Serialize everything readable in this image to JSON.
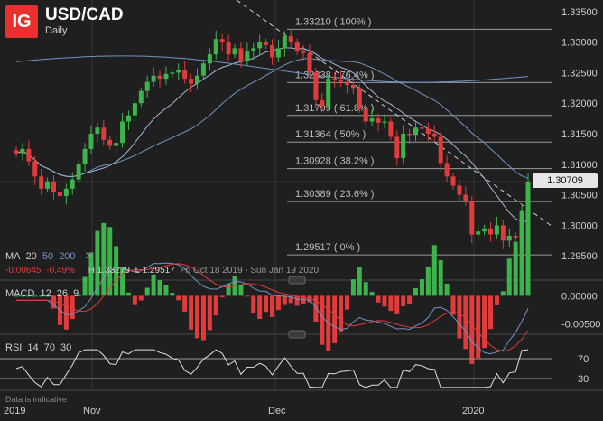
{
  "header": {
    "logo": "IG",
    "pair": "USD/CAD",
    "timeframe": "Daily"
  },
  "price_axis": {
    "ticks": [
      "1.33500",
      "1.33000",
      "1.32500",
      "1.32000",
      "1.31500",
      "1.31000",
      "1.30500",
      "1.30000",
      "1.29500"
    ],
    "current": "1.30709"
  },
  "fib_levels": [
    {
      "label": "1.33210 ( 100% )",
      "price": 1.3321
    },
    {
      "label": "1.32338 ( 76.4% )",
      "price": 1.32338
    },
    {
      "label": "1.31799 ( 61.8% )",
      "price": 1.31799
    },
    {
      "label": "1.31364 ( 50% )",
      "price": 1.31364
    },
    {
      "label": "1.30928 ( 38.2% )",
      "price": 1.30928
    },
    {
      "label": "1.30389 ( 23.6% )",
      "price": 1.30389
    },
    {
      "label": "1.29517 ( 0% )",
      "price": 1.29517
    }
  ],
  "ma_bar": {
    "label": "MA",
    "p1": "20",
    "p2": "50",
    "p3": "200",
    "close": "✕",
    "change": "-0.00645",
    "change_pct": "-0.49%",
    "high": "H 1.33279",
    "low": "L 1.29517",
    "range": "Fri Oct 18 2019 - Sun Jan 19 2020"
  },
  "macd": {
    "label": "MACD",
    "p1": "12",
    "p2": "26",
    "p3": "9",
    "ticks": [
      "0.00000",
      "-0.00500"
    ]
  },
  "rsi": {
    "label": "RSI",
    "p1": "14",
    "p2": "70",
    "p3": "30",
    "ticks": [
      "70",
      "30"
    ]
  },
  "x_axis": [
    "2019",
    "Nov",
    "Dec",
    "2020"
  ],
  "footer_note": "Data is indicative",
  "colors": {
    "up": "#3cb44b",
    "down": "#e23b3b",
    "ma20": "#9fb8d8",
    "ma50": "#6f95c4",
    "ma200": "#6f95c4",
    "signal": "#e23b3b"
  },
  "chart_data": {
    "type": "candlestick",
    "symbol": "USD/CAD",
    "x_ticks": [
      "2019",
      "Nov",
      "Dec",
      "2020"
    ],
    "ylim": [
      1.294,
      1.336
    ],
    "series": [
      {
        "name": "close",
        "values": [
          1.3118,
          1.3125,
          1.3105,
          1.308,
          1.306,
          1.3072,
          1.3055,
          1.3048,
          1.306,
          1.3075,
          1.31,
          1.3125,
          1.315,
          1.316,
          1.314,
          1.313,
          1.3135,
          1.317,
          1.318,
          1.32,
          1.322,
          1.3235,
          1.3245,
          1.324,
          1.3248,
          1.325,
          1.3255,
          1.324,
          1.3232,
          1.3245,
          1.3265,
          1.328,
          1.3305,
          1.33,
          1.328,
          1.329,
          1.327,
          1.3285,
          1.329,
          1.33,
          1.3295,
          1.3275,
          1.329,
          1.331,
          1.33,
          1.3285,
          1.3282,
          1.325,
          1.3205,
          1.3195,
          1.324,
          1.3238,
          1.3235,
          1.323,
          1.3225,
          1.319,
          1.317,
          1.3175,
          1.3168,
          1.317,
          1.3145,
          1.311,
          1.315,
          1.3148,
          1.316,
          1.3158,
          1.315,
          1.3145,
          1.3102,
          1.308,
          1.3065,
          1.305,
          1.304,
          1.2985,
          1.299,
          1.2995,
          1.2985,
          1.3,
          1.2975,
          1.2983,
          1.298,
          1.3025,
          1.3071
        ]
      }
    ]
  }
}
